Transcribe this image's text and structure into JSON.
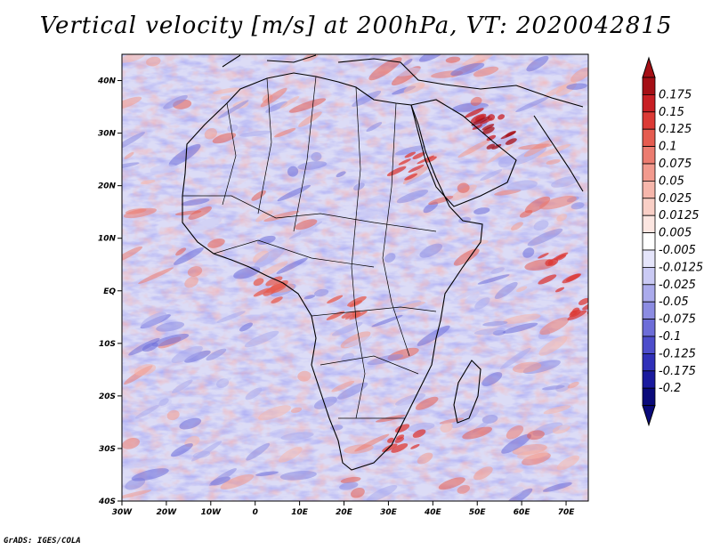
{
  "title": "Vertical velocity [m/s] at 200hPa, VT: 2020042815",
  "credit": "GrADS: IGES/COLA",
  "map": {
    "projection": "lat-lon",
    "lon_range": [
      -30,
      75
    ],
    "lat_range": [
      -40,
      45
    ],
    "x_ticks": [
      {
        "value": -30,
        "label": "30W"
      },
      {
        "value": -20,
        "label": "20W"
      },
      {
        "value": -10,
        "label": "10W"
      },
      {
        "value": 0,
        "label": "0"
      },
      {
        "value": 10,
        "label": "10E"
      },
      {
        "value": 20,
        "label": "20E"
      },
      {
        "value": 30,
        "label": "30E"
      },
      {
        "value": 40,
        "label": "40E"
      },
      {
        "value": 50,
        "label": "50E"
      },
      {
        "value": 60,
        "label": "60E"
      },
      {
        "value": 70,
        "label": "70E"
      }
    ],
    "y_ticks": [
      {
        "value": 40,
        "label": "40N"
      },
      {
        "value": 30,
        "label": "30N"
      },
      {
        "value": 20,
        "label": "20N"
      },
      {
        "value": 10,
        "label": "10N"
      },
      {
        "value": 0,
        "label": "EQ"
      },
      {
        "value": -10,
        "label": "10S"
      },
      {
        "value": -20,
        "label": "20S"
      },
      {
        "value": -30,
        "label": "30S"
      },
      {
        "value": -40,
        "label": "40S"
      }
    ],
    "field": "vertical velocity",
    "dominant_sign": "mixed ascent/descent with strong positive near Arabian Peninsula and east Indian Ocean"
  },
  "colorbar": {
    "levels": [
      "0.175",
      "0.15",
      "0.125",
      "0.1",
      "0.075",
      "0.05",
      "0.025",
      "0.0125",
      "0.005",
      "-0.005",
      "-0.0125",
      "-0.025",
      "-0.05",
      "-0.075",
      "-0.1",
      "-0.125",
      "-0.175",
      "-0.2"
    ],
    "colors": [
      "#a50f15",
      "#c81f24",
      "#dc3a35",
      "#e55c50",
      "#ec7c70",
      "#f29a8e",
      "#f6b6ab",
      "#f9cfc6",
      "#fce6e1",
      "#ffffff",
      "#e5e5fb",
      "#cacaf4",
      "#ababec",
      "#8c8ce2",
      "#6d6dd8",
      "#4d4dcb",
      "#3030b8",
      "#1a1a9e",
      "#0a0a7a"
    ]
  }
}
